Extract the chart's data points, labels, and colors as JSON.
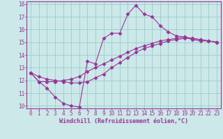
{
  "xlabel": "Windchill (Refroidissement éolien,°C)",
  "bg_color": "#cce8e8",
  "line_color": "#993399",
  "grid_color": "#99cccc",
  "line1_x": [
    0,
    1,
    2,
    3,
    4,
    5,
    6,
    7,
    8,
    9,
    10,
    11,
    12,
    13,
    14,
    15,
    16,
    17,
    18,
    19,
    20,
    21,
    22,
    23
  ],
  "line1_y": [
    12.6,
    11.9,
    11.4,
    10.7,
    10.2,
    10.0,
    9.9,
    13.5,
    13.3,
    15.3,
    15.7,
    15.7,
    17.2,
    17.9,
    17.2,
    17.0,
    16.3,
    15.8,
    15.5,
    15.4,
    15.2,
    15.1,
    15.1,
    15.0
  ],
  "line2_x": [
    0,
    1,
    2,
    3,
    4,
    5,
    6,
    7,
    8,
    9,
    10,
    11,
    12,
    13,
    14,
    15,
    16,
    17,
    18,
    19,
    20,
    21,
    22,
    23
  ],
  "line2_y": [
    12.6,
    11.9,
    11.9,
    11.9,
    12.0,
    12.1,
    12.3,
    12.7,
    13.0,
    13.3,
    13.6,
    13.9,
    14.2,
    14.5,
    14.7,
    14.9,
    15.1,
    15.2,
    15.3,
    15.4,
    15.3,
    15.2,
    15.1,
    15.0
  ],
  "line3_x": [
    0,
    1,
    2,
    3,
    4,
    5,
    6,
    7,
    8,
    9,
    10,
    11,
    12,
    13,
    14,
    15,
    16,
    17,
    18,
    19,
    20,
    21,
    22,
    23
  ],
  "line3_y": [
    12.6,
    12.3,
    12.1,
    12.0,
    11.9,
    11.8,
    11.8,
    11.9,
    12.2,
    12.5,
    13.0,
    13.4,
    13.8,
    14.2,
    14.5,
    14.7,
    14.9,
    15.1,
    15.2,
    15.3,
    15.3,
    15.2,
    15.1,
    15.0
  ],
  "xlim": [
    -0.5,
    23.5
  ],
  "ylim": [
    9.8,
    18.2
  ],
  "yticks": [
    10,
    11,
    12,
    13,
    14,
    15,
    16,
    17,
    18
  ],
  "xticks": [
    0,
    1,
    2,
    3,
    4,
    5,
    6,
    7,
    8,
    9,
    10,
    11,
    12,
    13,
    14,
    15,
    16,
    17,
    18,
    19,
    20,
    21,
    22,
    23
  ],
  "marker": "D",
  "markersize": 2.5,
  "linewidth": 0.8,
  "tick_fontsize": 5.5,
  "xlabel_fontsize": 6.0
}
